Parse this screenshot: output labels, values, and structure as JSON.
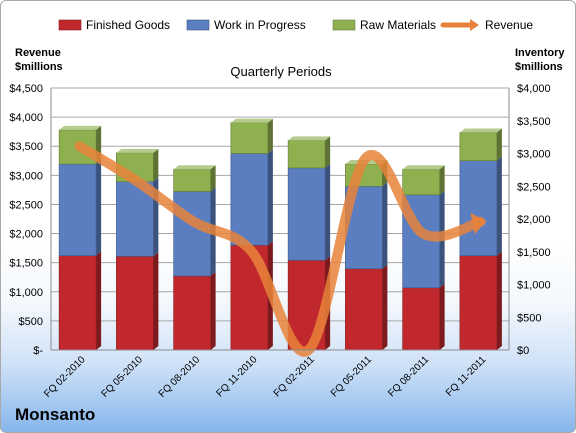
{
  "chart_data": {
    "type": "bar",
    "stacked": true,
    "title": "Quarterly Periods",
    "company": "Monsanto",
    "left_axis_title": [
      "Revenue",
      "$millions"
    ],
    "right_axis_title": [
      "Inventory",
      "$millions"
    ],
    "categories": [
      "FQ 02-2010",
      "FQ 05-2010",
      "FQ 08-2010",
      "FQ 11-2010",
      "FQ 02-2011",
      "FQ 05-2011",
      "FQ 08-2011",
      "FQ 11-2011"
    ],
    "left_ticks": [
      "$-",
      "$500",
      "$1,000",
      "$1,500",
      "$2,000",
      "$2,500",
      "$3,000",
      "$3,500",
      "$4,000",
      "$4,500"
    ],
    "right_ticks": [
      "$0",
      "$500",
      "$1,000",
      "$1,500",
      "$2,000",
      "$2,500",
      "$3,000",
      "$3,500",
      "$4,000"
    ],
    "left_ylim": [
      0,
      4500
    ],
    "right_ylim": [
      0,
      4000
    ],
    "grid": true,
    "legend_position": "top",
    "series": [
      {
        "name": "Finished Goods",
        "axis": "right",
        "color": "#c0282d",
        "values": [
          1440,
          1430,
          1130,
          1600,
          1370,
          1240,
          950,
          1440
        ]
      },
      {
        "name": "Work in Progress",
        "axis": "right",
        "color": "#5b7ec0",
        "values": [
          1400,
          1140,
          1290,
          1400,
          1410,
          1260,
          1420,
          1450
        ]
      },
      {
        "name": "Raw Materials",
        "axis": "right",
        "color": "#8fb04f",
        "values": [
          520,
          440,
          340,
          470,
          420,
          340,
          390,
          430
        ]
      }
    ],
    "line_series": {
      "name": "Revenue",
      "axis": "left",
      "color": "#e8823a",
      "values": [
        3500,
        2900,
        2200,
        1700,
        0,
        3300,
        2000,
        2200
      ]
    }
  }
}
